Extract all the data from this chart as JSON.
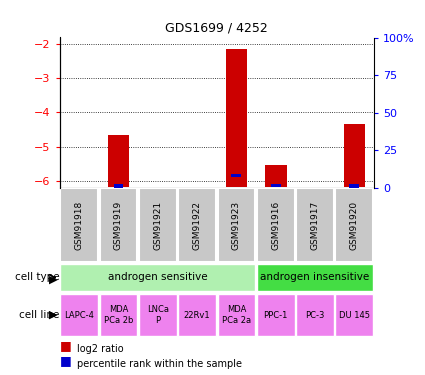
{
  "title": "GDS1699 / 4252",
  "samples": [
    "GSM91918",
    "GSM91919",
    "GSM91921",
    "GSM91922",
    "GSM91923",
    "GSM91916",
    "GSM91917",
    "GSM91920"
  ],
  "log2_ratios": [
    0,
    -4.65,
    0,
    0,
    -2.15,
    -5.55,
    0,
    -4.35
  ],
  "percentile_ranks": [
    0,
    1.0,
    0,
    0,
    8.0,
    1.5,
    0,
    1.0
  ],
  "ylim": [
    -6.2,
    -1.8
  ],
  "yticks": [
    -6,
    -5,
    -4,
    -3,
    -2
  ],
  "right_yticks": [
    0,
    25,
    50,
    75,
    100
  ],
  "cell_type_groups": [
    {
      "label": "androgen sensitive",
      "start": 0,
      "end": 4,
      "color": "#b0f0b0"
    },
    {
      "label": "androgen insensitive",
      "start": 5,
      "end": 7,
      "color": "#44dd44"
    }
  ],
  "cell_lines": [
    {
      "label": "LAPC-4",
      "span": [
        0,
        0
      ],
      "color": "#ee82ee"
    },
    {
      "label": "MDA\nPCa 2b",
      "span": [
        1,
        1
      ],
      "color": "#ee82ee"
    },
    {
      "label": "LNCa\nP",
      "span": [
        2,
        2
      ],
      "color": "#ee82ee"
    },
    {
      "label": "22Rv1",
      "span": [
        3,
        3
      ],
      "color": "#ee82ee"
    },
    {
      "label": "MDA\nPCa 2a",
      "span": [
        4,
        4
      ],
      "color": "#ee82ee"
    },
    {
      "label": "PPC-1",
      "span": [
        5,
        5
      ],
      "color": "#ee82ee"
    },
    {
      "label": "PC-3",
      "span": [
        6,
        6
      ],
      "color": "#ee82ee"
    },
    {
      "label": "DU 145",
      "span": [
        7,
        7
      ],
      "color": "#ee82ee"
    }
  ],
  "bar_color_red": "#cc0000",
  "bar_color_blue": "#0000cc",
  "bar_width": 0.55,
  "blue_bar_width": 0.25,
  "sample_box_color": "#c8c8c8",
  "left_labels": [
    "cell type",
    "cell line"
  ],
  "legend_items": [
    {
      "color": "#cc0000",
      "label": "log2 ratio"
    },
    {
      "color": "#0000cc",
      "label": "percentile rank within the sample"
    }
  ]
}
